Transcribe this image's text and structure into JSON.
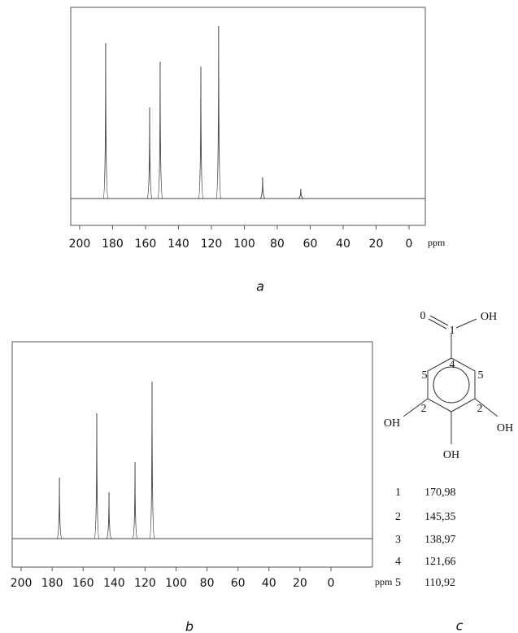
{
  "chart_data": [
    {
      "type": "stem",
      "caption": "a",
      "xlabel": "ppm",
      "color": "#444",
      "x": [
        184.2,
        157.5,
        151.1,
        126.4,
        115.6,
        88.9,
        65.7
      ],
      "values": [
        191,
        112,
        168,
        162,
        212,
        26,
        12
      ],
      "xlim": [
        205.4,
        -9.9
      ],
      "xticks": [
        200,
        180,
        160,
        140,
        120,
        100,
        80,
        60,
        40,
        20,
        0
      ],
      "ylim": [
        -33,
        235
      ]
    },
    {
      "type": "stem",
      "caption": "b",
      "xlabel": "ppm",
      "color": "#444",
      "x": [
        175.3,
        151.2,
        143.3,
        126.5,
        115.5
      ],
      "values": [
        75,
        154,
        57,
        94,
        193
      ],
      "xlim": [
        205.8,
        -26.8
      ],
      "xticks": [
        200,
        180,
        160,
        140,
        120,
        100,
        80,
        60,
        40,
        20,
        0
      ],
      "ylim": [
        -35,
        242
      ]
    }
  ],
  "structure": {
    "labels": [
      "0",
      "OH",
      "1",
      "4",
      "5",
      "5",
      "2",
      "2",
      "OH",
      "OH",
      "OH"
    ]
  },
  "table": {
    "caption": "c",
    "rows": [
      [
        "1",
        "170,98"
      ],
      [
        "2",
        "145,35"
      ],
      [
        "3",
        "138,97"
      ],
      [
        "4",
        "121,66"
      ],
      [
        "5",
        "110,92"
      ]
    ]
  }
}
